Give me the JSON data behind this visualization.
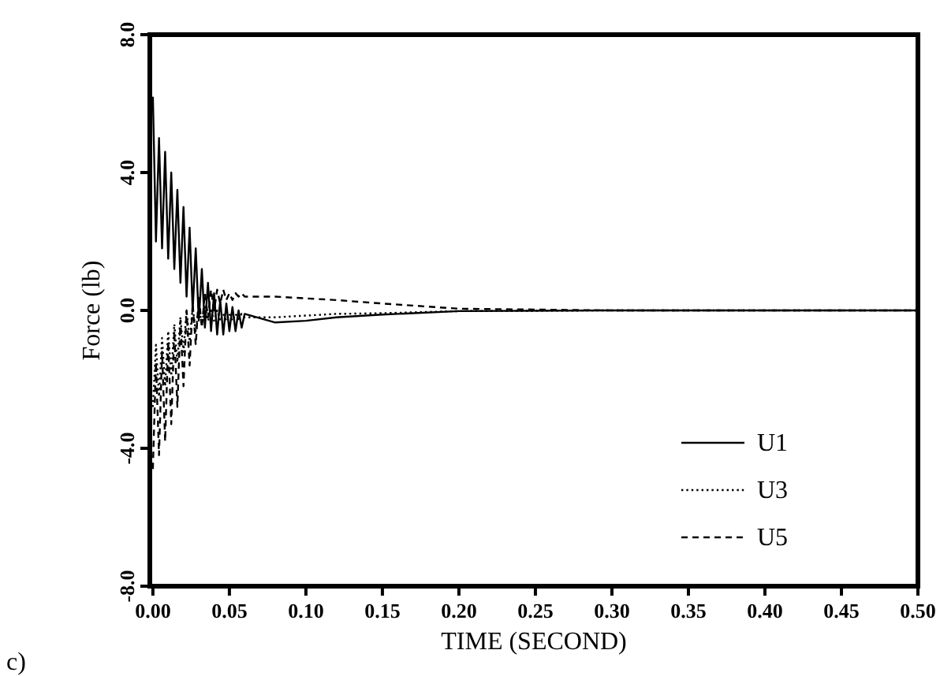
{
  "chart_data": {
    "type": "line",
    "xlabel": "TIME (SECOND)",
    "ylabel": "Force (lb)",
    "annotations": [
      "c)"
    ],
    "legend": "bottom right",
    "grid": false,
    "marker": "none",
    "xlim": [
      -0.002,
      0.5
    ],
    "xticks": [
      {
        "value": 0,
        "label": "0.00"
      },
      {
        "value": 0.05,
        "label": "0.05"
      },
      {
        "value": 0.1,
        "label": "0.10"
      },
      {
        "value": 0.15,
        "label": "0.15"
      },
      {
        "value": 0.2,
        "label": "0.20"
      },
      {
        "value": 0.25,
        "label": "0.25"
      },
      {
        "value": 0.3,
        "label": "0.30"
      },
      {
        "value": 0.35,
        "label": "0.35"
      },
      {
        "value": 0.4,
        "label": "0.40"
      },
      {
        "value": 0.45,
        "label": "0.45"
      },
      {
        "value": 0.5,
        "label": "0.50"
      }
    ],
    "ylim": [
      -8,
      8
    ],
    "yticks": [
      {
        "value": -8,
        "label": "-8.0"
      },
      {
        "value": -4,
        "label": "-4.0"
      },
      {
        "value": 0,
        "label": "0.0"
      },
      {
        "value": 4,
        "label": "4.0"
      },
      {
        "value": 8,
        "label": "8.0"
      }
    ],
    "x": [
      0,
      0.002,
      0.004,
      0.006,
      0.008,
      0.01,
      0.012,
      0.014,
      0.016,
      0.018,
      0.02,
      0.022,
      0.024,
      0.026,
      0.028,
      0.03,
      0.032,
      0.034,
      0.036,
      0.038,
      0.04,
      0.042,
      0.044,
      0.046,
      0.048,
      0.05,
      0.052,
      0.054,
      0.056,
      0.058,
      0.06,
      0.08,
      0.1,
      0.12,
      0.15,
      0.2,
      0.3,
      0.5
    ],
    "series": [
      {
        "name": "U1",
        "color": "#000000",
        "line_style": "solid",
        "values": [
          6.2,
          2.0,
          5.0,
          1.8,
          4.6,
          1.5,
          4.0,
          1.2,
          3.5,
          0.8,
          3.0,
          0.4,
          2.4,
          0.0,
          1.8,
          -0.3,
          1.2,
          -0.5,
          0.8,
          -0.6,
          0.5,
          -0.7,
          0.3,
          -0.7,
          0.2,
          -0.6,
          0.1,
          -0.6,
          0.0,
          -0.5,
          -0.1,
          -0.35,
          -0.3,
          -0.2,
          -0.12,
          -0.02,
          0,
          0
        ]
      },
      {
        "name": "U3",
        "color": "#000000",
        "line_style": "dotted",
        "values": [
          -2.8,
          -1.0,
          -2.5,
          -0.8,
          -2.2,
          -0.6,
          -1.9,
          -0.4,
          -1.5,
          -0.2,
          -1.2,
          0.0,
          -0.9,
          0.1,
          -0.6,
          0.1,
          -0.4,
          0.1,
          -0.3,
          0.0,
          -0.3,
          0.0,
          -0.3,
          -0.1,
          -0.3,
          -0.1,
          -0.3,
          -0.1,
          -0.25,
          -0.1,
          -0.2,
          -0.2,
          -0.15,
          -0.1,
          -0.08,
          -0.02,
          0,
          0
        ]
      },
      {
        "name": "U5",
        "color": "#000000",
        "line_style": "dashed",
        "values": [
          -4.6,
          -1.5,
          -4.2,
          -1.2,
          -3.8,
          -0.9,
          -3.3,
          -0.6,
          -2.8,
          -0.3,
          -2.2,
          0.0,
          -1.6,
          0.2,
          -1.0,
          0.4,
          -0.5,
          0.5,
          -0.2,
          0.6,
          0.0,
          0.6,
          0.2,
          0.6,
          0.3,
          0.5,
          0.3,
          0.5,
          0.4,
          0.5,
          0.4,
          0.4,
          0.35,
          0.3,
          0.2,
          0.05,
          0,
          0
        ]
      }
    ]
  }
}
